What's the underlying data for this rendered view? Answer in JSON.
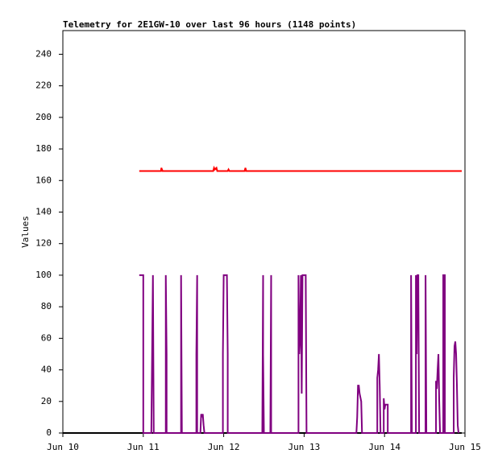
{
  "chart_data": {
    "type": "line",
    "title": "Telemetry for 2E1GW-10 over last 96 hours (1148 points)",
    "y_label": "Values",
    "xlim": [
      10,
      15
    ],
    "xticks": [
      {
        "value": 10,
        "label": "Jun 10"
      },
      {
        "value": 11,
        "label": "Jun 11"
      },
      {
        "value": 12,
        "label": "Jun 12"
      },
      {
        "value": 13,
        "label": "Jun 13"
      },
      {
        "value": 14,
        "label": "Jun 14"
      },
      {
        "value": 15,
        "label": "Jun 15"
      }
    ],
    "ylim": [
      0,
      255
    ],
    "yticks": [
      0,
      20,
      40,
      60,
      80,
      100,
      120,
      140,
      160,
      180,
      200,
      220,
      240
    ],
    "grid": false,
    "series": [
      {
        "color": "#000000",
        "x": [
          10.0,
          14.96
        ],
        "values": [
          0,
          0
        ]
      },
      {
        "color": "#ff0000",
        "x": [
          10.95,
          11.22,
          11.225,
          11.24,
          11.87,
          11.88,
          11.89,
          11.91,
          11.92,
          12.05,
          12.06,
          12.07,
          12.26,
          12.27,
          12.28,
          14.96
        ],
        "values": [
          166,
          166,
          168,
          166,
          166,
          168,
          167,
          168,
          166,
          166,
          167,
          166,
          166,
          168,
          166,
          166
        ]
      },
      {
        "color": "#800080",
        "x": [
          10.95,
          11.0,
          11.0,
          11.1,
          11.11,
          11.12,
          11.13,
          11.28,
          11.28,
          11.29,
          11.29,
          11.47,
          11.47,
          11.48,
          11.66,
          11.66,
          11.67,
          11.67,
          11.71,
          11.72,
          11.73,
          11.74,
          11.75,
          11.76,
          11.99,
          11.99,
          12.0,
          12.04,
          12.05,
          12.05,
          12.48,
          12.49,
          12.49,
          12.5,
          12.58,
          12.59,
          12.59,
          12.93,
          12.93,
          12.94,
          12.95,
          12.96,
          12.97,
          12.98,
          13.02,
          13.03,
          13.65,
          13.66,
          13.67,
          13.68,
          13.69,
          13.71,
          13.72,
          13.91,
          13.91,
          13.92,
          13.93,
          13.94,
          13.95,
          13.99,
          13.99,
          14.0,
          14.01,
          14.04,
          14.04,
          14.33,
          14.33,
          14.34,
          14.39,
          14.39,
          14.4,
          14.41,
          14.42,
          14.43,
          14.51,
          14.51,
          14.52,
          14.64,
          14.64,
          14.65,
          14.66,
          14.67,
          14.68,
          14.69,
          14.73,
          14.73,
          14.75,
          14.75,
          14.86,
          14.86,
          14.87,
          14.88,
          14.89,
          14.9,
          14.91,
          14.92
        ],
        "values": [
          100,
          100,
          0,
          0,
          50,
          100,
          0,
          0,
          100,
          50,
          0,
          0,
          100,
          0,
          0,
          50,
          100,
          0,
          0,
          12,
          10,
          12,
          5,
          0,
          0,
          50,
          100,
          100,
          50,
          0,
          0,
          100,
          50,
          0,
          0,
          100,
          0,
          0,
          100,
          50,
          60,
          100,
          25,
          100,
          100,
          0,
          0,
          10,
          30,
          30,
          25,
          20,
          0,
          0,
          35,
          40,
          50,
          30,
          0,
          0,
          22,
          15,
          18,
          18,
          0,
          0,
          100,
          0,
          0,
          100,
          50,
          100,
          100,
          0,
          0,
          100,
          0,
          0,
          33,
          28,
          40,
          50,
          20,
          0,
          0,
          100,
          100,
          0,
          0,
          35,
          55,
          58,
          50,
          30,
          5,
          0
        ]
      }
    ]
  }
}
